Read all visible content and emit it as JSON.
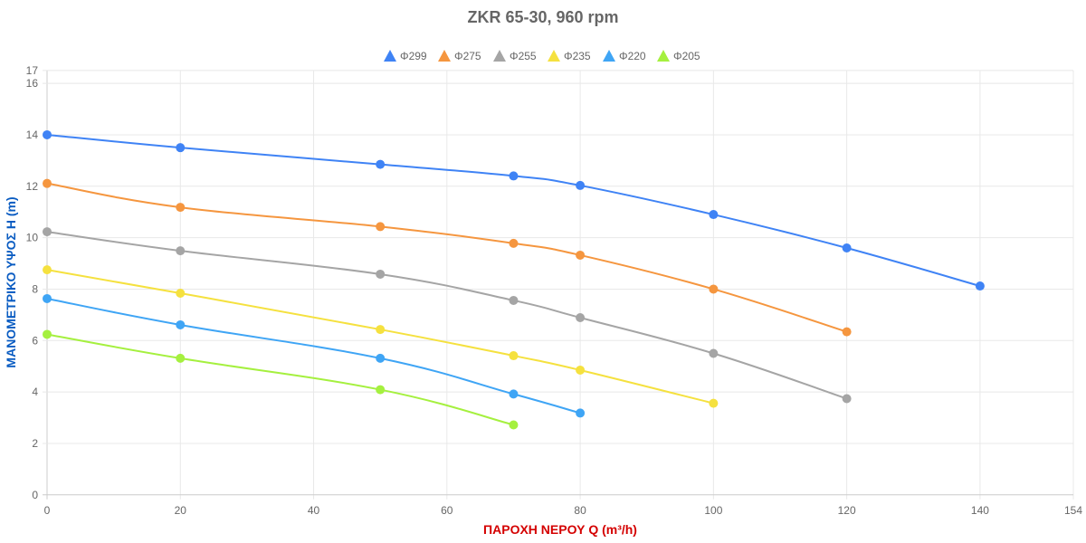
{
  "chart_data": {
    "type": "line",
    "title": "ZKR 65-30, 960 rpm",
    "xlabel": "ΠΑΡΟΧΗ ΝΕΡΟΥ Q (m³/h)",
    "ylabel": "ΜΑΝΟΜΕΤΡΙΚΟ ΥΨΟΣ H (m)",
    "xlabel_color": "#d40000",
    "ylabel_color": "#0a5cc2",
    "xlim": [
      0,
      154
    ],
    "ylim": [
      0,
      16.5
    ],
    "x_ticks": [
      "0",
      "20",
      "40",
      "60",
      "80",
      "100",
      "120",
      "140",
      "154"
    ],
    "y_ticks": [
      "0",
      "2",
      "4",
      "6",
      "8",
      "10",
      "12",
      "14",
      "16",
      "17"
    ],
    "grid": true,
    "legend_position": "top",
    "legend_marker": "triangle",
    "series": [
      {
        "name": "Φ299",
        "color": "#3f83f5",
        "x": [
          0,
          20,
          50,
          70,
          80,
          100,
          120,
          140
        ],
        "y": [
          14.0,
          13.5,
          12.85,
          12.4,
          12.03,
          10.9,
          9.6,
          8.12
        ]
      },
      {
        "name": "Φ275",
        "color": "#f5963f",
        "x": [
          0,
          20,
          50,
          70,
          80,
          100,
          120
        ],
        "y": [
          12.11,
          11.18,
          10.43,
          9.78,
          9.32,
          8.0,
          6.34
        ]
      },
      {
        "name": "Φ255",
        "color": "#a5a5a5",
        "x": [
          0,
          20,
          50,
          70,
          80,
          100,
          120
        ],
        "y": [
          10.23,
          9.49,
          8.58,
          7.56,
          6.89,
          5.5,
          3.74
        ]
      },
      {
        "name": "Φ235",
        "color": "#f5e13f",
        "x": [
          0,
          20,
          50,
          70,
          80,
          100
        ],
        "y": [
          8.75,
          7.84,
          6.43,
          5.41,
          4.85,
          3.56
        ]
      },
      {
        "name": "Φ220",
        "color": "#3fa5f5",
        "x": [
          0,
          20,
          50,
          70,
          80
        ],
        "y": [
          7.63,
          6.61,
          5.31,
          3.92,
          3.18
        ]
      },
      {
        "name": "Φ205",
        "color": "#a5f03f",
        "x": [
          0,
          20,
          50,
          70
        ],
        "y": [
          6.24,
          5.31,
          4.09,
          2.72
        ]
      }
    ]
  }
}
